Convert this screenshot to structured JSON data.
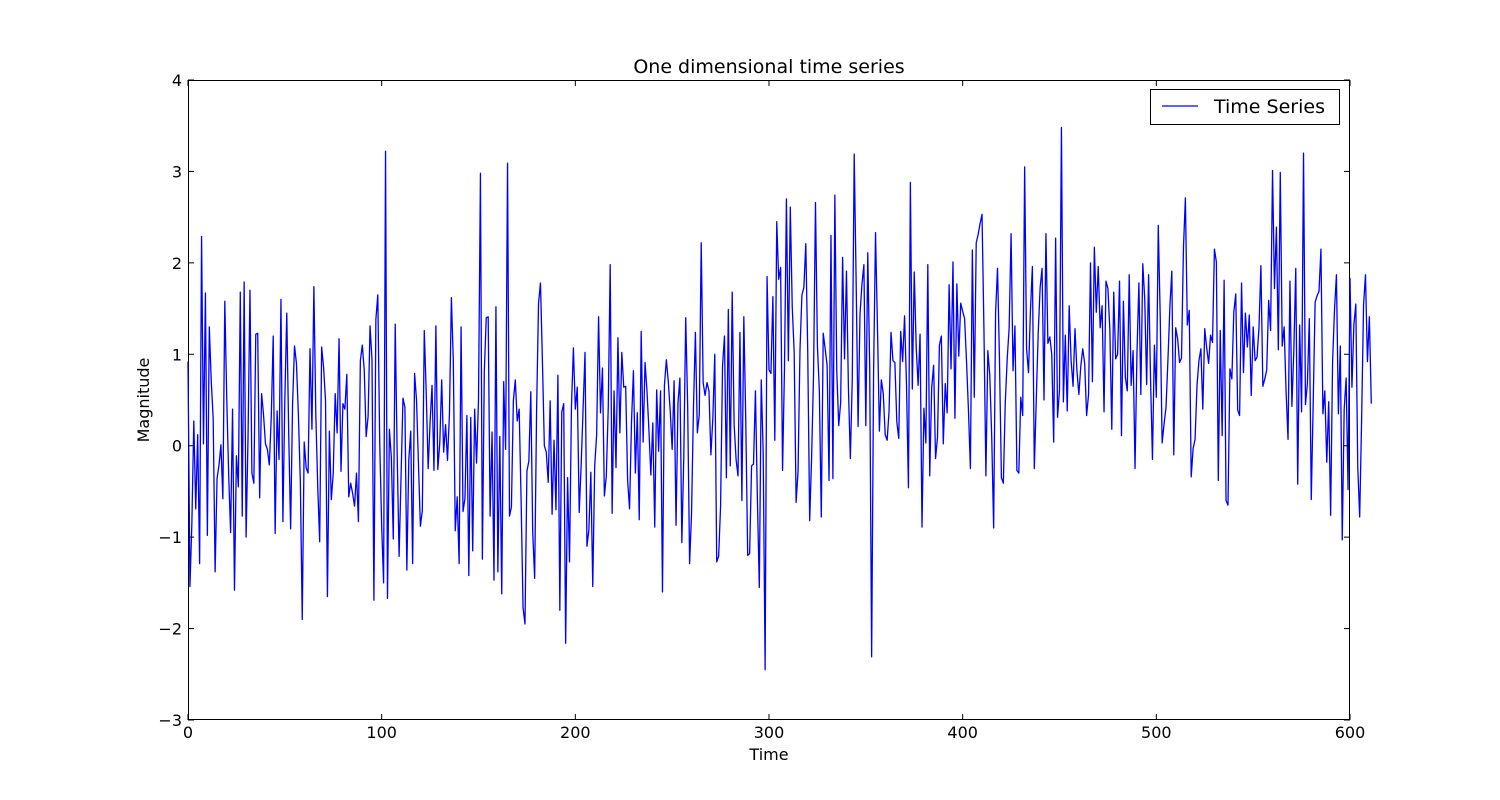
{
  "chart_data": {
    "type": "line",
    "title": "One dimensional time series",
    "xlabel": "Time",
    "ylabel": "Magnitude",
    "xlim": [
      0,
      600
    ],
    "ylim": [
      -3,
      4
    ],
    "xticks": [
      0,
      100,
      200,
      300,
      400,
      500,
      600
    ],
    "xtick_labels": [
      "0",
      "100",
      "200",
      "300",
      "400",
      "500",
      "600"
    ],
    "yticks": [
      -3,
      -2,
      -1,
      0,
      1,
      2,
      3,
      4
    ],
    "ytick_labels": [
      "−3",
      "−2",
      "−1",
      "0",
      "1",
      "2",
      "3",
      "4"
    ],
    "grid": false,
    "legend": {
      "position": "top-right",
      "entries": [
        "Time Series"
      ]
    },
    "series": [
      {
        "name": "Time Series",
        "color": "#0000ff",
        "x_start": 0,
        "x_step": 1,
        "values": [
          0.92,
          -1.54,
          -0.85,
          0.27,
          -0.69,
          0.12,
          -1.29,
          2.29,
          0.02,
          1.67,
          -0.98,
          1.3,
          0.71,
          0.3,
          -1.38,
          -0.36,
          -0.21,
          0.01,
          -0.58,
          1.58,
          0.53,
          -0.32,
          -0.95,
          0.4,
          -1.58,
          -0.11,
          -0.45,
          1.68,
          -0.77,
          1.79,
          -1.0,
          0.1,
          1.7,
          -0.3,
          -0.41,
          1.22,
          1.23,
          -0.57,
          0.57,
          0.34,
          0.02,
          -0.04,
          -0.21,
          0.32,
          1.2,
          -0.96,
          0.38,
          -0.15,
          1.6,
          -0.83,
          0.51,
          1.45,
          0.13,
          -0.91,
          0.46,
          1.09,
          0.9,
          0.34,
          -0.39,
          -1.9,
          0.04,
          -0.24,
          -0.3,
          1.06,
          0.18,
          1.74,
          0.34,
          -0.46,
          -1.05,
          1.08,
          0.86,
          0.5,
          -1.65,
          0.16,
          -0.59,
          -0.3,
          0.57,
          0.14,
          1.17,
          -0.28,
          0.46,
          0.4,
          0.78,
          -0.56,
          -0.41,
          -0.52,
          -0.66,
          -0.3,
          -0.83,
          0.93,
          1.1,
          0.83,
          0.1,
          0.32,
          1.31,
          0.94,
          -1.69,
          1.38,
          1.65,
          0.03,
          -0.88,
          -1.5,
          3.22,
          -1.67,
          0.18,
          -0.13,
          -1.02,
          1.33,
          -0.08,
          -1.21,
          -0.35,
          0.52,
          0.42,
          -1.36,
          -0.16,
          0.16,
          -1.29,
          0.79,
          0.5,
          -0.2,
          -0.88,
          -0.71,
          1.26,
          0.59,
          -0.25,
          0.25,
          0.66,
          -0.27,
          1.31,
          -0.26,
          0.03,
          0.72,
          -0.07,
          0.23,
          -0.16,
          0.35,
          1.62,
          0.92,
          -0.93,
          -0.56,
          -1.29,
          1.3,
          -0.72,
          -0.58,
          0.33,
          -1.42,
          0.31,
          -1.15,
          0.4,
          -0.19,
          0.5,
          2.98,
          -1.24,
          0.81,
          1.4,
          1.41,
          -0.77,
          0.15,
          -1.47,
          1.52,
          -1.38,
          0.1,
          -1.62,
          0.7,
          -0.04,
          3.09,
          -0.77,
          -0.67,
          0.49,
          0.72,
          0.27,
          0.4,
          -0.6,
          -1.77,
          -1.95,
          -0.28,
          -0.17,
          0.59,
          -0.95,
          -1.45,
          0.39,
          1.56,
          1.78,
          0.93,
          0.0,
          -0.07,
          -0.4,
          0.49,
          -0.75,
          0.06,
          -0.7,
          0.77,
          -1.8,
          0.37,
          0.46,
          -2.16,
          -0.35,
          -1.27,
          0.43,
          1.07,
          0.4,
          0.64,
          -0.73,
          -0.22,
          0.4,
          1.02,
          -1.1,
          -0.92,
          -0.29,
          -1.54,
          -0.22,
          0.12,
          1.41,
          0.36,
          0.85,
          -0.55,
          -0.33,
          0.42,
          1.98,
          -0.74,
          0.6,
          -0.24,
          1.18,
          0.14,
          1.02,
          0.64,
          0.65,
          -0.38,
          -0.69,
          0.26,
          0.82,
          -0.3,
          0.36,
          -0.81,
          1.25,
          0.04,
          0.91,
          0.6,
          0.17,
          -0.32,
          0.25,
          -0.89,
          0.61,
          -0.06,
          0.6,
          -1.6,
          0.66,
          0.94,
          0.7,
          0.38,
          -0.04,
          0.71,
          -0.87,
          0.47,
          0.74,
          -1.06,
          -0.12,
          1.4,
          0.44,
          -1.29,
          -0.75,
          0.42,
          1.24,
          0.14,
          0.34,
          2.22,
          0.69,
          0.55,
          0.69,
          0.6,
          -0.1,
          0.3,
          1.0,
          -1.27,
          -1.21,
          -0.66,
          0.87,
          1.2,
          -0.35,
          1.49,
          -0.22,
          1.68,
          0.23,
          -0.15,
          -0.33,
          1.24,
          -0.6,
          1.41,
          0.28,
          -1.2,
          -1.18,
          -0.22,
          -0.2,
          0.6,
          -0.58,
          -1.55,
          0.72,
          -0.08,
          -2.45,
          1.85,
          0.83,
          0.79,
          1.63,
          0.06,
          2.45,
          1.82,
          1.95,
          -0.27,
          0.85,
          2.7,
          0.93,
          2.61,
          1.52,
          1.02,
          -0.62,
          -0.28,
          1.05,
          1.65,
          1.73,
          2.21,
          1.04,
          -0.82,
          -0.13,
          0.78,
          2.66,
          1.09,
          0.6,
          -0.78,
          1.23,
          1.06,
          0.88,
          -0.38,
          2.3,
          -0.36,
          2.74,
          0.81,
          0.22,
          0.47,
          2.06,
          0.95,
          1.91,
          0.64,
          -0.14,
          0.73,
          3.19,
          1.79,
          0.21,
          1.44,
          1.77,
          1.98,
          0.22,
          2.11,
          0.86,
          -2.31,
          0.79,
          2.33,
          1.31,
          0.16,
          0.72,
          0.57,
          0.12,
          0.06,
          0.38,
          1.24,
          0.93,
          0.91,
          0.26,
          0.08,
          1.25,
          0.92,
          1.42,
          0.66,
          -0.46,
          2.88,
          0.62,
          1.9,
          1.08,
          0.66,
          1.22,
          -0.89,
          0.41,
          0.03,
          1.98,
          -0.33,
          0.63,
          0.88,
          -0.14,
          0.09,
          1.1,
          1.2,
          0.02,
          0.68,
          0.36,
          1.76,
          0.84,
          2.01,
          0.3,
          1.77,
          0.98,
          1.56,
          1.47,
          1.39,
          0.92,
          0.38,
          -0.25,
          2.14,
          0.53,
          2.22,
          2.31,
          2.43,
          2.53,
          1.25,
          -0.33,
          1.04,
          0.77,
          0.1,
          -0.9,
          1.46,
          1.94,
          0.95,
          -0.35,
          -0.41,
          0.47,
          0.95,
          1.29,
          2.32,
          0.82,
          1.31,
          -0.27,
          -0.3,
          0.53,
          0.33,
          3.05,
          1.06,
          0.8,
          1.48,
          1.96,
          -0.25,
          0.5,
          1.23,
          1.73,
          1.94,
          0.5,
          2.32,
          1.12,
          1.19,
          1.0,
          0.04,
          2.27,
          0.31,
          0.61,
          3.48,
          0.48,
          1.21,
          0.38,
          1.53,
          0.93,
          0.65,
          1.28,
          0.82,
          0.56,
          0.87,
          1.06,
          0.9,
          0.33,
          0.56,
          2.0,
          0.7,
          2.17,
          1.46,
          1.96,
          1.29,
          1.53,
          0.37,
          1.8,
          1.72,
          1.27,
          0.18,
          1.68,
          0.95,
          1.0,
          1.8,
          0.11,
          1.58,
          0.75,
          0.6,
          1.87,
          0.66,
          1.04,
          -0.25,
          1.02,
          1.78,
          0.56,
          1.99,
          1.61,
          0.67,
          1.87,
          0.74,
          -0.15,
          1.1,
          0.53,
          2.41,
          1.42,
          0.03,
          0.24,
          0.42,
          0.94,
          1.52,
          1.91,
          -0.1,
          1.29,
          1.17,
          0.91,
          0.96,
          2.16,
          2.71,
          1.32,
          1.48,
          -0.34,
          -0.03,
          0.07,
          0.66,
          0.93,
          1.06,
          0.4,
          1.28,
          1.07,
          0.9,
          1.21,
          1.13,
          2.15,
          2.01,
          -0.38,
          1.26,
          0.11,
          1.81,
          -0.6,
          -0.65,
          0.84,
          0.73,
          1.46,
          1.66,
          0.39,
          0.33,
          1.78,
          0.8,
          1.45,
          1.08,
          1.43,
          0.55,
          1.3,
          0.93,
          0.97,
          1.29,
          1.97,
          0.65,
          0.73,
          0.83,
          1.59,
          1.26,
          3.01,
          1.72,
          2.39,
          1.05,
          2.99,
          1.09,
          1.3,
          0.59,
          0.07,
          1.8,
          0.43,
          1.05,
          1.94,
          -0.42,
          1.32,
          0.37,
          3.2,
          0.45,
          0.68,
          1.39,
          -0.59,
          0.47,
          1.57,
          1.64,
          1.69,
          2.15,
          0.35,
          0.6,
          -0.18,
          0.48,
          -0.76,
          0.91,
          1.49,
          1.87,
          0.35,
          1.09,
          -1.03,
          0.4,
          0.74,
          -0.48,
          1.83,
          0.64,
          1.32,
          1.55,
          -0.23,
          -0.78,
          0.29,
          1.54,
          1.87,
          0.92,
          1.41,
          0.46
        ]
      }
    ]
  }
}
